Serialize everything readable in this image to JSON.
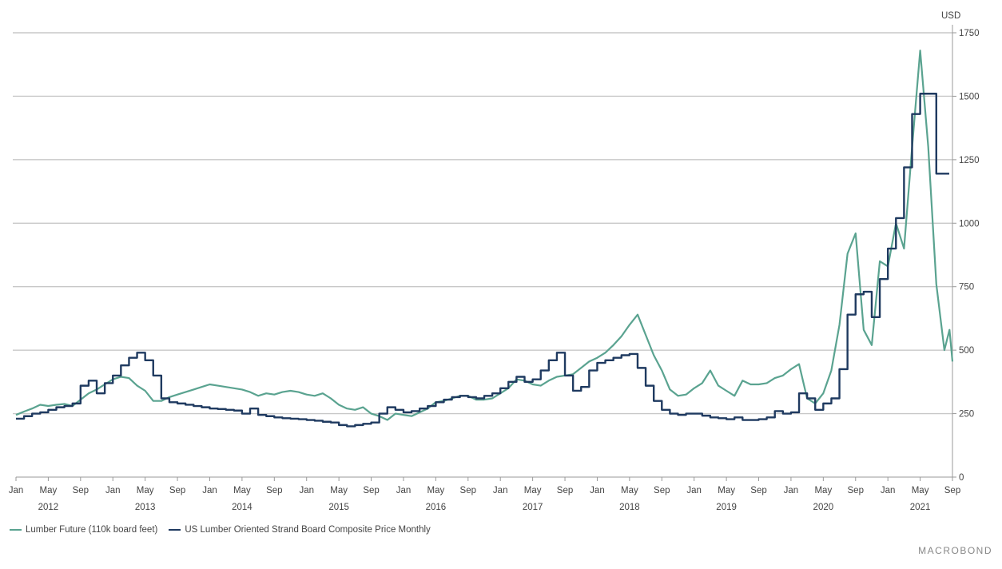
{
  "chart_data": {
    "type": "line",
    "unit_label": "USD",
    "ylim": [
      0,
      1750
    ],
    "y_ticks": [
      0,
      250,
      500,
      750,
      1000,
      1250,
      1500,
      1750
    ],
    "x_range": [
      "2012-01",
      "2021-09"
    ],
    "x_tick_labels": [
      "Jan",
      "May",
      "Sep",
      "Jan",
      "May",
      "Sep",
      "Jan",
      "May",
      "Sep",
      "Jan",
      "May",
      "Sep",
      "Jan",
      "May",
      "Sep",
      "Jan",
      "May",
      "Sep",
      "Jan",
      "May",
      "Sep",
      "Jan",
      "May",
      "Sep",
      "Jan",
      "May",
      "Sep",
      "Jan",
      "May",
      "Sep"
    ],
    "year_labels": [
      "2012",
      "2013",
      "2014",
      "2015",
      "2016",
      "2017",
      "2018",
      "2019",
      "2020",
      "2021"
    ],
    "grid": true,
    "legend_position": "bottom-left",
    "colors": {
      "lumber_future": "#5aa390",
      "osb": "#1f3a60",
      "grid": "#c8c8c8",
      "axis": "#999999"
    },
    "series": [
      {
        "name": "Lumber Future (110k board feet)",
        "key": "lumber_future",
        "style": "line",
        "points": [
          [
            "2012-01",
            245
          ],
          [
            "2012-02",
            258
          ],
          [
            "2012-03",
            270
          ],
          [
            "2012-04",
            285
          ],
          [
            "2012-05",
            280
          ],
          [
            "2012-06",
            285
          ],
          [
            "2012-07",
            288
          ],
          [
            "2012-08",
            280
          ],
          [
            "2012-09",
            305
          ],
          [
            "2012-10",
            330
          ],
          [
            "2012-11",
            345
          ],
          [
            "2012-12",
            365
          ],
          [
            "2013-01",
            385
          ],
          [
            "2013-02",
            395
          ],
          [
            "2013-03",
            390
          ],
          [
            "2013-04",
            360
          ],
          [
            "2013-05",
            340
          ],
          [
            "2013-06",
            300
          ],
          [
            "2013-07",
            300
          ],
          [
            "2013-08",
            315
          ],
          [
            "2013-09",
            325
          ],
          [
            "2013-10",
            335
          ],
          [
            "2013-11",
            345
          ],
          [
            "2013-12",
            355
          ],
          [
            "2014-01",
            365
          ],
          [
            "2014-02",
            360
          ],
          [
            "2014-03",
            355
          ],
          [
            "2014-04",
            350
          ],
          [
            "2014-05",
            345
          ],
          [
            "2014-06",
            335
          ],
          [
            "2014-07",
            320
          ],
          [
            "2014-08",
            330
          ],
          [
            "2014-09",
            325
          ],
          [
            "2014-10",
            335
          ],
          [
            "2014-11",
            340
          ],
          [
            "2014-12",
            335
          ],
          [
            "2015-01",
            325
          ],
          [
            "2015-02",
            320
          ],
          [
            "2015-03",
            330
          ],
          [
            "2015-04",
            310
          ],
          [
            "2015-05",
            285
          ],
          [
            "2015-06",
            270
          ],
          [
            "2015-07",
            265
          ],
          [
            "2015-08",
            275
          ],
          [
            "2015-09",
            250
          ],
          [
            "2015-10",
            240
          ],
          [
            "2015-11",
            225
          ],
          [
            "2015-12",
            250
          ],
          [
            "2016-01",
            245
          ],
          [
            "2016-02",
            240
          ],
          [
            "2016-03",
            255
          ],
          [
            "2016-04",
            270
          ],
          [
            "2016-05",
            295
          ],
          [
            "2016-06",
            300
          ],
          [
            "2016-07",
            310
          ],
          [
            "2016-08",
            320
          ],
          [
            "2016-09",
            320
          ],
          [
            "2016-10",
            305
          ],
          [
            "2016-11",
            305
          ],
          [
            "2016-12",
            310
          ],
          [
            "2017-01",
            330
          ],
          [
            "2017-02",
            350
          ],
          [
            "2017-03",
            385
          ],
          [
            "2017-04",
            380
          ],
          [
            "2017-05",
            365
          ],
          [
            "2017-06",
            360
          ],
          [
            "2017-07",
            380
          ],
          [
            "2017-08",
            395
          ],
          [
            "2017-09",
            400
          ],
          [
            "2017-10",
            405
          ],
          [
            "2017-11",
            430
          ],
          [
            "2017-12",
            455
          ],
          [
            "2018-01",
            470
          ],
          [
            "2018-02",
            490
          ],
          [
            "2018-03",
            520
          ],
          [
            "2018-04",
            555
          ],
          [
            "2018-05",
            600
          ],
          [
            "2018-06",
            640
          ],
          [
            "2018-07",
            560
          ],
          [
            "2018-08",
            480
          ],
          [
            "2018-09",
            420
          ],
          [
            "2018-10",
            345
          ],
          [
            "2018-11",
            320
          ],
          [
            "2018-12",
            325
          ],
          [
            "2019-01",
            350
          ],
          [
            "2019-02",
            370
          ],
          [
            "2019-03",
            420
          ],
          [
            "2019-04",
            360
          ],
          [
            "2019-05",
            340
          ],
          [
            "2019-06",
            320
          ],
          [
            "2019-07",
            380
          ],
          [
            "2019-08",
            365
          ],
          [
            "2019-09",
            365
          ],
          [
            "2019-10",
            370
          ],
          [
            "2019-11",
            390
          ],
          [
            "2019-12",
            400
          ],
          [
            "2020-01",
            425
          ],
          [
            "2020-02",
            445
          ],
          [
            "2020-03",
            310
          ],
          [
            "2020-04",
            290
          ],
          [
            "2020-05",
            330
          ],
          [
            "2020-06",
            420
          ],
          [
            "2020-07",
            600
          ],
          [
            "2020-08",
            880
          ],
          [
            "2020-09",
            960
          ],
          [
            "2020-10",
            580
          ],
          [
            "2020-11",
            520
          ],
          [
            "2020-12",
            850
          ],
          [
            "2021-01",
            830
          ],
          [
            "2021-02",
            1000
          ],
          [
            "2021-03",
            900
          ],
          [
            "2021-04",
            1300
          ],
          [
            "2021-05",
            1680
          ],
          [
            "2021-06",
            1300
          ],
          [
            "2021-07",
            760
          ],
          [
            "2021-08",
            500
          ],
          [
            "2021-08-20",
            580
          ],
          [
            "2021-09",
            455
          ]
        ]
      },
      {
        "name": "US Lumber Oriented Strand Board Composite Price Monthly",
        "key": "osb",
        "style": "step",
        "points": [
          [
            "2012-01",
            230
          ],
          [
            "2012-02",
            240
          ],
          [
            "2012-03",
            250
          ],
          [
            "2012-04",
            255
          ],
          [
            "2012-05",
            265
          ],
          [
            "2012-06",
            275
          ],
          [
            "2012-07",
            280
          ],
          [
            "2012-08",
            290
          ],
          [
            "2012-09",
            360
          ],
          [
            "2012-10",
            380
          ],
          [
            "2012-11",
            330
          ],
          [
            "2012-12",
            370
          ],
          [
            "2013-01",
            400
          ],
          [
            "2013-02",
            440
          ],
          [
            "2013-03",
            470
          ],
          [
            "2013-04",
            490
          ],
          [
            "2013-05",
            460
          ],
          [
            "2013-06",
            400
          ],
          [
            "2013-07",
            310
          ],
          [
            "2013-08",
            295
          ],
          [
            "2013-09",
            290
          ],
          [
            "2013-10",
            285
          ],
          [
            "2013-11",
            280
          ],
          [
            "2013-12",
            275
          ],
          [
            "2014-01",
            270
          ],
          [
            "2014-02",
            268
          ],
          [
            "2014-03",
            265
          ],
          [
            "2014-04",
            262
          ],
          [
            "2014-05",
            250
          ],
          [
            "2014-06",
            270
          ],
          [
            "2014-07",
            245
          ],
          [
            "2014-08",
            240
          ],
          [
            "2014-09",
            235
          ],
          [
            "2014-10",
            232
          ],
          [
            "2014-11",
            230
          ],
          [
            "2014-12",
            228
          ],
          [
            "2015-01",
            225
          ],
          [
            "2015-02",
            222
          ],
          [
            "2015-03",
            218
          ],
          [
            "2015-04",
            215
          ],
          [
            "2015-05",
            205
          ],
          [
            "2015-06",
            200
          ],
          [
            "2015-07",
            205
          ],
          [
            "2015-08",
            210
          ],
          [
            "2015-09",
            215
          ],
          [
            "2015-10",
            250
          ],
          [
            "2015-11",
            275
          ],
          [
            "2015-12",
            265
          ],
          [
            "2016-01",
            255
          ],
          [
            "2016-02",
            260
          ],
          [
            "2016-03",
            270
          ],
          [
            "2016-04",
            280
          ],
          [
            "2016-05",
            295
          ],
          [
            "2016-06",
            305
          ],
          [
            "2016-07",
            315
          ],
          [
            "2016-08",
            320
          ],
          [
            "2016-09",
            315
          ],
          [
            "2016-10",
            310
          ],
          [
            "2016-11",
            320
          ],
          [
            "2016-12",
            330
          ],
          [
            "2017-01",
            350
          ],
          [
            "2017-02",
            375
          ],
          [
            "2017-03",
            395
          ],
          [
            "2017-04",
            375
          ],
          [
            "2017-05",
            385
          ],
          [
            "2017-06",
            420
          ],
          [
            "2017-07",
            460
          ],
          [
            "2017-08",
            490
          ],
          [
            "2017-09",
            400
          ],
          [
            "2017-10",
            340
          ],
          [
            "2017-11",
            355
          ],
          [
            "2017-12",
            420
          ],
          [
            "2018-01",
            450
          ],
          [
            "2018-02",
            460
          ],
          [
            "2018-03",
            470
          ],
          [
            "2018-04",
            480
          ],
          [
            "2018-05",
            485
          ],
          [
            "2018-06",
            430
          ],
          [
            "2018-07",
            360
          ],
          [
            "2018-08",
            300
          ],
          [
            "2018-09",
            265
          ],
          [
            "2018-10",
            250
          ],
          [
            "2018-11",
            245
          ],
          [
            "2018-12",
            250
          ],
          [
            "2019-01",
            250
          ],
          [
            "2019-02",
            242
          ],
          [
            "2019-03",
            235
          ],
          [
            "2019-04",
            232
          ],
          [
            "2019-05",
            228
          ],
          [
            "2019-06",
            235
          ],
          [
            "2019-07",
            225
          ],
          [
            "2019-08",
            225
          ],
          [
            "2019-09",
            228
          ],
          [
            "2019-10",
            235
          ],
          [
            "2019-11",
            260
          ],
          [
            "2019-12",
            250
          ],
          [
            "2020-01",
            255
          ],
          [
            "2020-02",
            330
          ],
          [
            "2020-03",
            310
          ],
          [
            "2020-04",
            265
          ],
          [
            "2020-05",
            290
          ],
          [
            "2020-06",
            310
          ],
          [
            "2020-07",
            425
          ],
          [
            "2020-08",
            640
          ],
          [
            "2020-09",
            720
          ],
          [
            "2020-10",
            730
          ],
          [
            "2020-11",
            630
          ],
          [
            "2020-12",
            780
          ],
          [
            "2021-01",
            900
          ],
          [
            "2021-02",
            1020
          ],
          [
            "2021-03",
            1220
          ],
          [
            "2021-04",
            1430
          ],
          [
            "2021-05",
            1510
          ],
          [
            "2021-06",
            1510
          ],
          [
            "2021-07",
            1195
          ],
          [
            "2021-08",
            1195
          ]
        ]
      }
    ]
  },
  "legend": {
    "items": [
      {
        "label": "Lumber Future (110k board feet)",
        "color": "#5aa390"
      },
      {
        "label": "US Lumber Oriented Strand Board Composite Price Monthly",
        "color": "#1f3a60"
      }
    ]
  },
  "brand": {
    "text": "MACROBOND"
  }
}
